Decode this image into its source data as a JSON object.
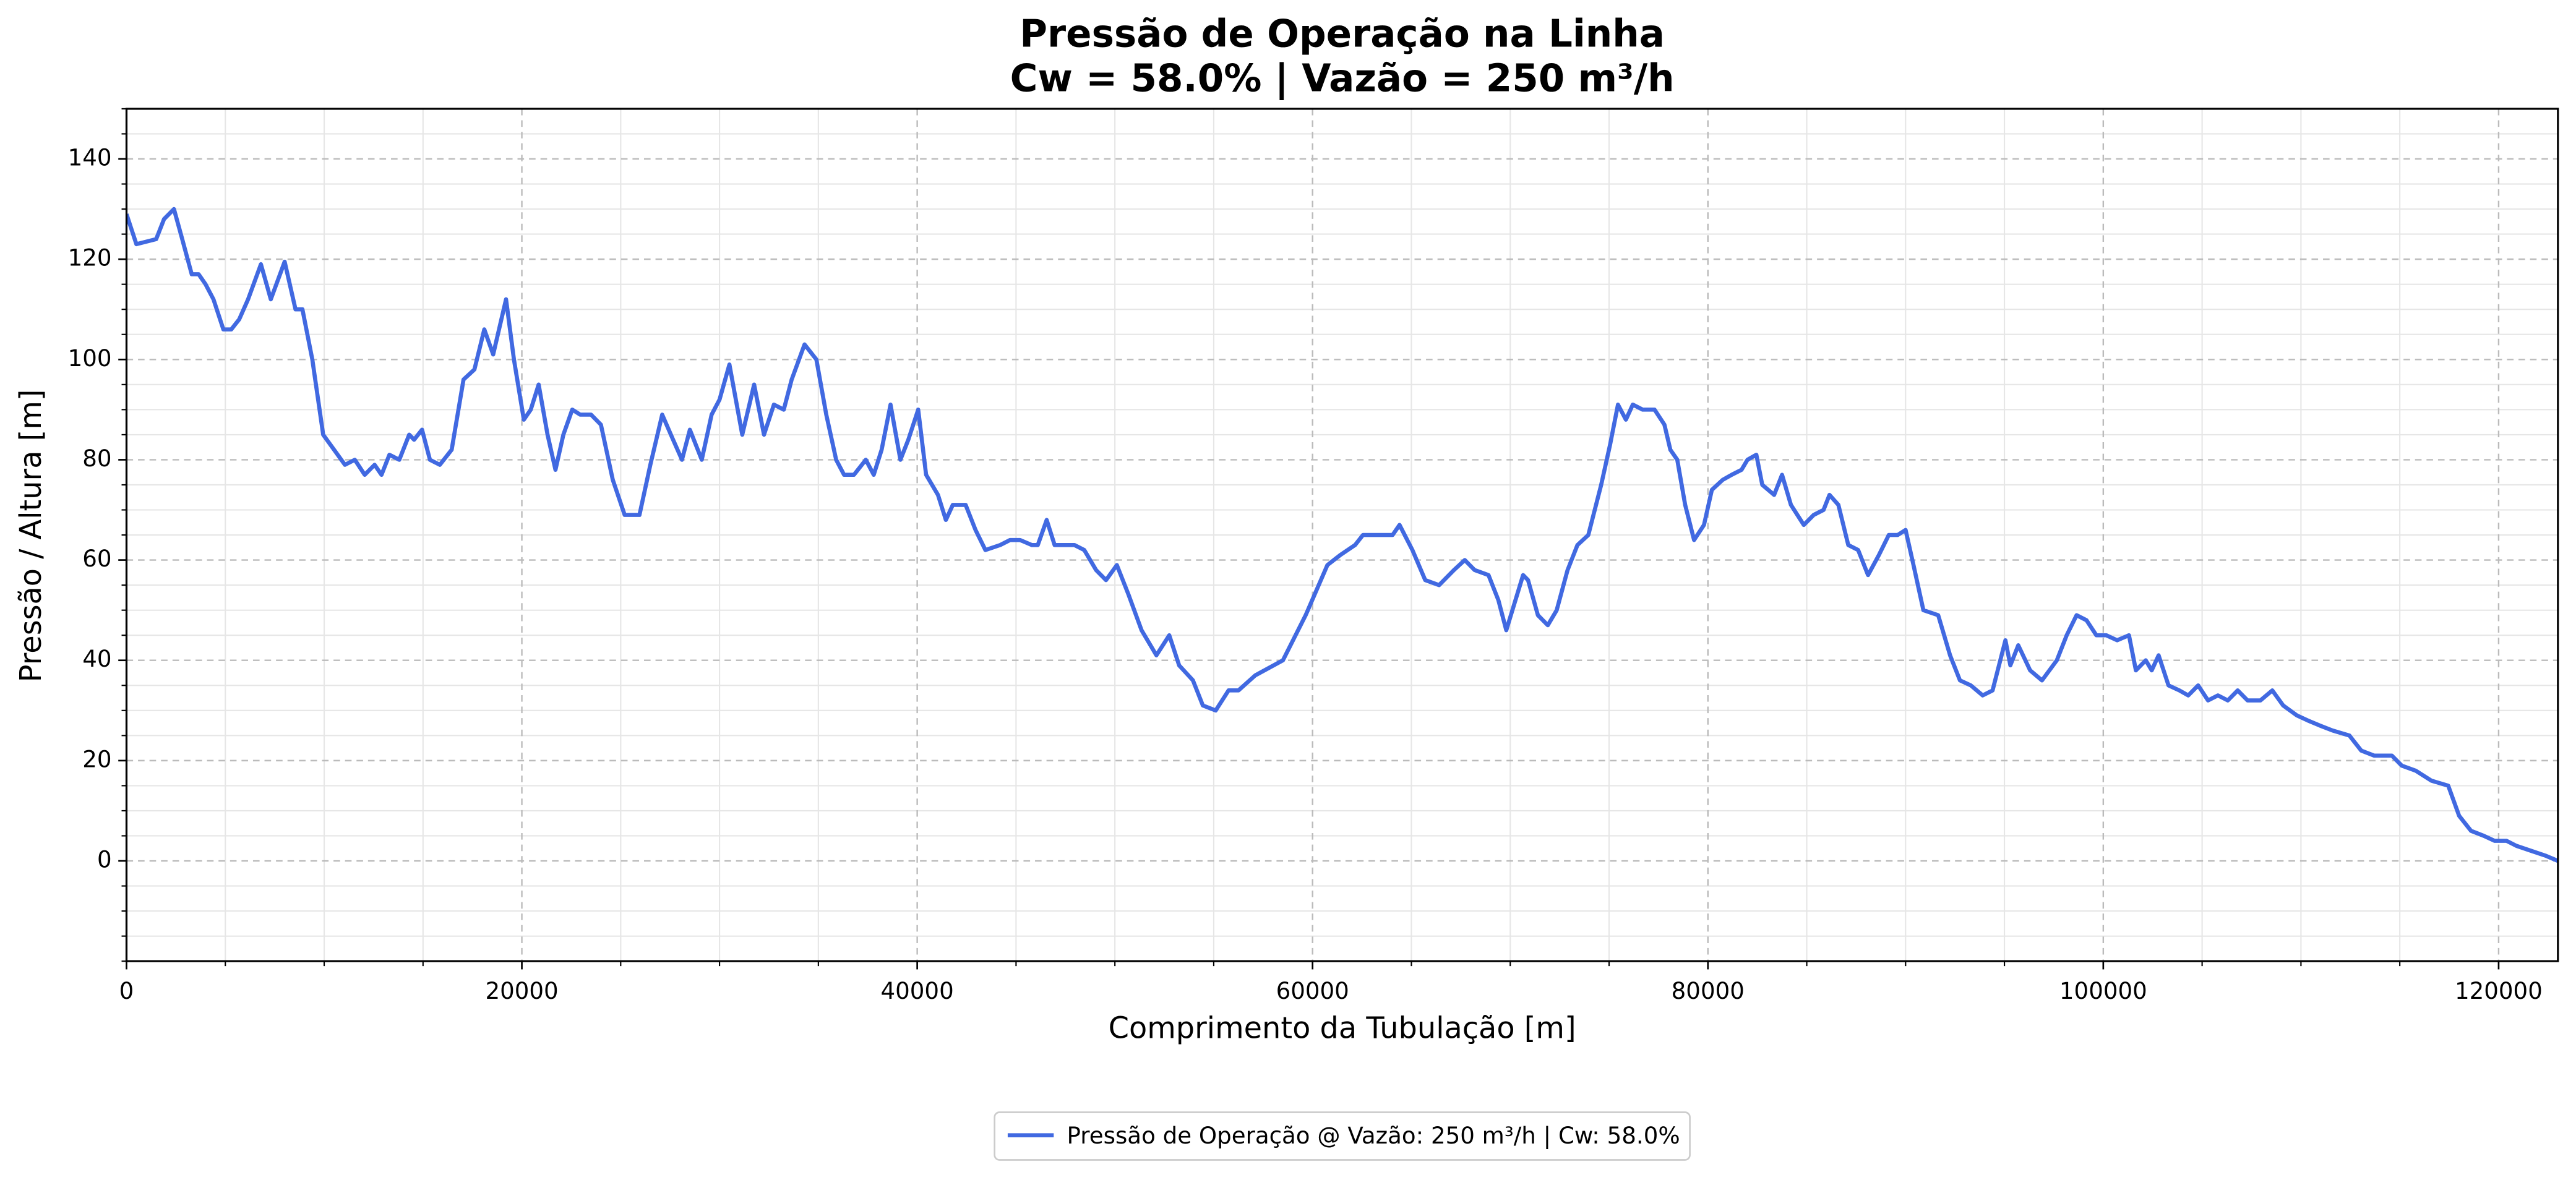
{
  "chart_data": {
    "type": "line",
    "title": "Pressão de Operação na Linha",
    "subtitle": "Cw = 58.0% | Vazão = 250 m³/h",
    "x_label": "Comprimento da Tubulação [m]",
    "y_label": "Pressão / Altura [m]",
    "x": [
      0,
      250,
      500,
      1500,
      1900,
      2400,
      2750,
      3300,
      3650,
      4000,
      4400,
      4900,
      5300,
      5700,
      6150,
      6800,
      7300,
      8000,
      8550,
      8900,
      9400,
      9950,
      10500,
      11050,
      11550,
      12050,
      12550,
      12900,
      13300,
      13800,
      14300,
      14550,
      14950,
      15350,
      15850,
      16450,
      17050,
      17600,
      18100,
      18550,
      19200,
      19600,
      20100,
      20450,
      20850,
      21300,
      21700,
      22100,
      22550,
      22950,
      23500,
      24000,
      24600,
      25200,
      25950,
      26500,
      27100,
      27650,
      28100,
      28500,
      29100,
      29600,
      30000,
      30500,
      31150,
      31750,
      32250,
      32750,
      33250,
      33650,
      34300,
      34900,
      35400,
      35900,
      36300,
      36800,
      37400,
      37800,
      38200,
      38650,
      39150,
      39550,
      40050,
      40450,
      41050,
      41450,
      41800,
      42450,
      42950,
      43450,
      44200,
      44700,
      45200,
      45800,
      46100,
      46550,
      46950,
      47450,
      47950,
      48450,
      49050,
      49550,
      50100,
      50700,
      51350,
      52100,
      52750,
      53250,
      53950,
      54450,
      55100,
      55750,
      56250,
      57100,
      58500,
      59650,
      60750,
      61400,
      62150,
      62550,
      63400,
      64050,
      64400,
      65050,
      65700,
      66400,
      67150,
      67700,
      68200,
      68900,
      69400,
      69800,
      70650,
      70900,
      71400,
      71900,
      72350,
      72900,
      73400,
      73950,
      74600,
      75050,
      75450,
      75850,
      76200,
      76700,
      77300,
      77800,
      78100,
      78450,
      78850,
      79300,
      79800,
      80200,
      80750,
      81200,
      81700,
      82000,
      82450,
      82750,
      83350,
      83750,
      84200,
      84850,
      85350,
      85850,
      86150,
      86600,
      87100,
      87600,
      88100,
      88650,
      89150,
      89600,
      90000,
      90400,
      90900,
      91650,
      92250,
      92750,
      93300,
      93900,
      94400,
      95050,
      95300,
      95700,
      96300,
      96900,
      97650,
      98150,
      98650,
      99150,
      99650,
      100150,
      100700,
      101300,
      101650,
      102150,
      102450,
      102800,
      103300,
      103850,
      104300,
      104800,
      105300,
      105800,
      106300,
      106800,
      107300,
      107950,
      108550,
      109100,
      109800,
      110350,
      110950,
      111600,
      112450,
      113050,
      113700,
      114600,
      115100,
      115800,
      116600,
      117450,
      118000,
      118600,
      119250,
      119800,
      120400,
      120900,
      121650,
      122400,
      123000
    ],
    "series": [
      {
        "name": "Pressão de Operação @ Vazão: 250 m³/h | Cw: 58.0%",
        "color": "#4169e1",
        "values": [
          129,
          126,
          123,
          124,
          128,
          130,
          125,
          117,
          117,
          115,
          112,
          106,
          106,
          108,
          112,
          119,
          112,
          119.5,
          110,
          110,
          100,
          85,
          82,
          79,
          80,
          77,
          79,
          77,
          81,
          80,
          85,
          84,
          86,
          80,
          79,
          82,
          96,
          98,
          106,
          101,
          112,
          100,
          88,
          90,
          95,
          85,
          78,
          85,
          90,
          89,
          89,
          87,
          76,
          69,
          69,
          79,
          89,
          84,
          80,
          86,
          80,
          89,
          92,
          99,
          85,
          95,
          85,
          91,
          90,
          96,
          103,
          100,
          89,
          80,
          77,
          77,
          80,
          77,
          82,
          91,
          80,
          84,
          90,
          77,
          73,
          68,
          71,
          71,
          66,
          62,
          63,
          64,
          64,
          63,
          63,
          68,
          63,
          63,
          63,
          62,
          58,
          56,
          59,
          53,
          46,
          41,
          45,
          39,
          36,
          31,
          30,
          34,
          34,
          37,
          40,
          49,
          59,
          61,
          63,
          65,
          65,
          65,
          67,
          62,
          56,
          55,
          58,
          60,
          58,
          57,
          52,
          46,
          57,
          56,
          49,
          47,
          50,
          58,
          63,
          65,
          75,
          83,
          91,
          88,
          91,
          90,
          90,
          87,
          82,
          80,
          71,
          64,
          67,
          74,
          76,
          77,
          78,
          80,
          81,
          75,
          73,
          77,
          71,
          67,
          69,
          70,
          73,
          71,
          63,
          62,
          57,
          61,
          65,
          65,
          66,
          59,
          50,
          49,
          41,
          36,
          35,
          33,
          34,
          44,
          39,
          43,
          38,
          36,
          40,
          45,
          49,
          48,
          45,
          45,
          44,
          45,
          38,
          40,
          38,
          41,
          35,
          34,
          33,
          35,
          32,
          33,
          32,
          34,
          32,
          32,
          34,
          31,
          29,
          28,
          27,
          26,
          25,
          22,
          21,
          21,
          19,
          18,
          16,
          15,
          9,
          6,
          5,
          4,
          4,
          3,
          2,
          1,
          0
        ]
      }
    ],
    "xlim": [
      0,
      123000
    ],
    "ylim": [
      -20,
      150
    ],
    "xticks": [
      0,
      20000,
      40000,
      60000,
      80000,
      100000,
      120000
    ],
    "yticks": [
      0,
      20,
      40,
      60,
      80,
      100,
      120,
      140
    ],
    "grid": true,
    "legend": "lower center"
  }
}
